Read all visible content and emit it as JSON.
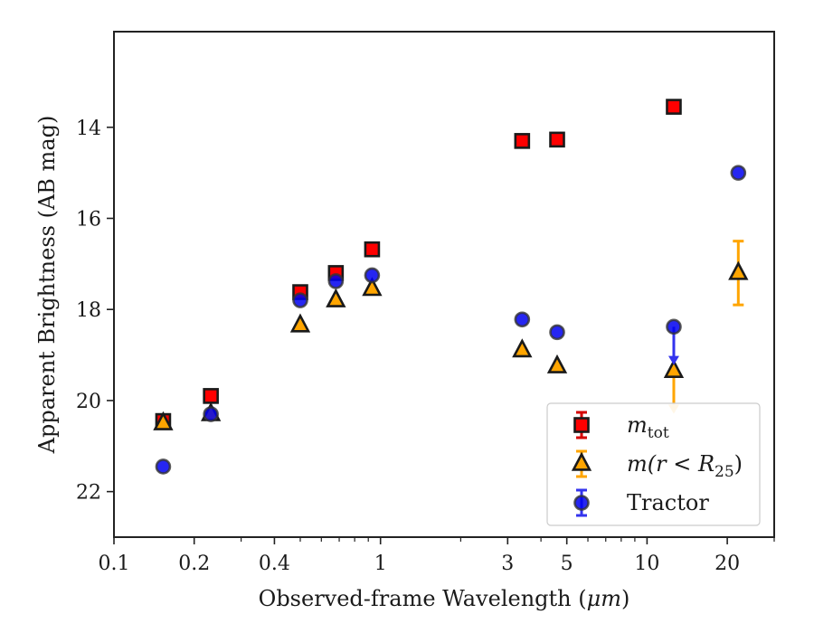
{
  "chart_data": {
    "type": "scatter",
    "xscale": "log",
    "xlim": [
      0.1,
      30
    ],
    "ylim": [
      23,
      11.9
    ],
    "y_inverted": true,
    "xlabel_prefix": "Observed-frame Wavelength (",
    "xlabel_unit": "μm",
    "xlabel_suffix": ")",
    "ylabel": "Apparent Brightness (AB mag)",
    "x_ticks": [
      {
        "value": 0.1,
        "label": "0.1"
      },
      {
        "value": 0.2,
        "label": "0.2"
      },
      {
        "value": 0.4,
        "label": "0.4"
      },
      {
        "value": 1,
        "label": "1"
      },
      {
        "value": 3,
        "label": "3"
      },
      {
        "value": 5,
        "label": "5"
      },
      {
        "value": 10,
        "label": "10"
      },
      {
        "value": 20,
        "label": "20"
      }
    ],
    "x_minor_ticks": [
      0.3,
      0.5,
      0.6,
      0.7,
      0.8,
      0.9,
      2,
      4,
      6,
      7,
      8,
      9,
      30
    ],
    "y_ticks": [
      {
        "value": 14,
        "label": "14"
      },
      {
        "value": 16,
        "label": "16"
      },
      {
        "value": 18,
        "label": "18"
      },
      {
        "value": 20,
        "label": "20"
      },
      {
        "value": 22,
        "label": "22"
      }
    ],
    "legend_position": "lower-right",
    "series": [
      {
        "name": "m_tot",
        "legend_main": "m",
        "legend_sub": "tot",
        "marker": "square",
        "color": "#ff0000",
        "errorbar_color": "#d40000",
        "points": [
          {
            "x": 0.153,
            "y": 20.45
          },
          {
            "x": 0.231,
            "y": 19.9
          },
          {
            "x": 0.5,
            "y": 17.62
          },
          {
            "x": 0.68,
            "y": 17.2
          },
          {
            "x": 0.93,
            "y": 16.68
          },
          {
            "x": 3.4,
            "y": 14.3
          },
          {
            "x": 4.6,
            "y": 14.27
          },
          {
            "x": 12.6,
            "y": 13.55
          }
        ]
      },
      {
        "name": "m(r<R25)",
        "legend_text": "m(r < R",
        "legend_sub": "25",
        "legend_close": ")",
        "marker": "triangle",
        "color": "#ffa500",
        "errorbar_color": "#ffa500",
        "points": [
          {
            "x": 0.153,
            "y": 20.5
          },
          {
            "x": 0.231,
            "y": 20.3
          },
          {
            "x": 0.5,
            "y": 18.35
          },
          {
            "x": 0.68,
            "y": 17.8
          },
          {
            "x": 0.93,
            "y": 17.55
          },
          {
            "x": 3.4,
            "y": 18.9
          },
          {
            "x": 4.6,
            "y": 19.25
          },
          {
            "x": 12.6,
            "y": 19.35,
            "yerr_low": 0.9
          },
          {
            "x": 22,
            "y": 17.2,
            "yerr": 0.7
          }
        ]
      },
      {
        "name": "Tractor",
        "legend_text": "Tractor",
        "marker": "circle",
        "color": "#0000ee",
        "errorbar_color": "#3333ee",
        "points": [
          {
            "x": 0.153,
            "y": 21.45
          },
          {
            "x": 0.231,
            "y": 20.3
          },
          {
            "x": 0.5,
            "y": 17.8
          },
          {
            "x": 0.68,
            "y": 17.38
          },
          {
            "x": 0.93,
            "y": 17.25
          },
          {
            "x": 3.4,
            "y": 18.22
          },
          {
            "x": 4.6,
            "y": 18.5
          },
          {
            "x": 12.6,
            "y": 18.38,
            "yerr_low": 0.8
          },
          {
            "x": 22,
            "y": 15.0
          }
        ]
      }
    ]
  }
}
